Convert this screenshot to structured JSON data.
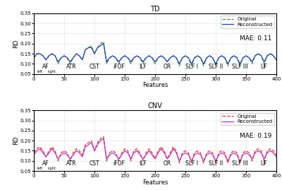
{
  "chart_data": [
    {
      "type": "line",
      "title": "TD",
      "x_label": "Features",
      "y_label": "RD",
      "annotation": "MAE: 0.11",
      "tract_labels": [
        {
          "label": "AF",
          "x": 20
        },
        {
          "label": "ATR",
          "x": 62
        },
        {
          "label": "CST",
          "x": 100
        },
        {
          "label": "iFOF",
          "x": 140
        },
        {
          "label": "ILF",
          "x": 180
        },
        {
          "label": "OR",
          "x": 220
        },
        {
          "label": "SLF I",
          "x": 260
        },
        {
          "label": "SLF II",
          "x": 300
        },
        {
          "label": "SLF III",
          "x": 340
        },
        {
          "label": "UF",
          "x": 380
        }
      ],
      "side_labels": [
        {
          "label": "left",
          "x": 10
        },
        {
          "label": "right",
          "x": 30
        }
      ],
      "x": [
        0,
        5,
        10,
        15,
        20,
        25,
        30,
        35,
        40,
        45,
        50,
        55,
        60,
        65,
        70,
        75,
        80,
        85,
        90,
        95,
        100,
        105,
        110,
        115,
        120,
        125,
        130,
        135,
        140,
        145,
        150,
        155,
        160,
        165,
        170,
        175,
        180,
        185,
        190,
        195,
        200,
        205,
        210,
        215,
        220,
        225,
        230,
        235,
        240,
        245,
        250,
        255,
        260,
        265,
        270,
        275,
        280,
        285,
        290,
        295,
        300,
        305,
        310,
        315,
        320,
        325,
        330,
        335,
        340,
        345,
        350,
        355,
        360,
        365,
        370,
        375,
        380,
        385,
        390,
        395,
        400
      ],
      "series": [
        {
          "name": "Original",
          "color": "#3a9a3a",
          "line_style": "dashed",
          "values": [
            0.13,
            0.15,
            0.15,
            0.14,
            0.12,
            0.14,
            0.15,
            0.14,
            0.1,
            0.13,
            0.14,
            0.13,
            0.1,
            0.13,
            0.15,
            0.14,
            0.12,
            0.17,
            0.18,
            0.19,
            0.15,
            0.18,
            0.2,
            0.21,
            0.1,
            0.13,
            0.14,
            0.13,
            0.1,
            0.13,
            0.14,
            0.13,
            0.1,
            0.13,
            0.14,
            0.13,
            0.1,
            0.13,
            0.14,
            0.13,
            0.1,
            0.13,
            0.14,
            0.13,
            0.11,
            0.13,
            0.14,
            0.13,
            0.09,
            0.13,
            0.14,
            0.13,
            0.09,
            0.13,
            0.14,
            0.13,
            0.09,
            0.13,
            0.14,
            0.13,
            0.09,
            0.13,
            0.14,
            0.13,
            0.09,
            0.13,
            0.14,
            0.13,
            0.09,
            0.13,
            0.14,
            0.13,
            0.1,
            0.14,
            0.15,
            0.14,
            0.1,
            0.14,
            0.15,
            0.14,
            0.12
          ]
        },
        {
          "name": "Reconstructed",
          "color": "#2040c0",
          "line_style": "solid",
          "values": [
            0.13,
            0.15,
            0.15,
            0.14,
            0.12,
            0.14,
            0.15,
            0.14,
            0.11,
            0.13,
            0.14,
            0.13,
            0.11,
            0.13,
            0.15,
            0.14,
            0.12,
            0.17,
            0.18,
            0.18,
            0.15,
            0.18,
            0.19,
            0.2,
            0.11,
            0.13,
            0.14,
            0.13,
            0.11,
            0.13,
            0.14,
            0.13,
            0.11,
            0.13,
            0.14,
            0.13,
            0.11,
            0.13,
            0.14,
            0.13,
            0.11,
            0.13,
            0.14,
            0.13,
            0.11,
            0.13,
            0.14,
            0.13,
            0.1,
            0.13,
            0.14,
            0.13,
            0.1,
            0.13,
            0.14,
            0.13,
            0.1,
            0.13,
            0.14,
            0.13,
            0.1,
            0.13,
            0.14,
            0.13,
            0.1,
            0.13,
            0.14,
            0.13,
            0.1,
            0.13,
            0.14,
            0.13,
            0.11,
            0.14,
            0.15,
            0.14,
            0.11,
            0.14,
            0.15,
            0.14,
            0.12
          ]
        }
      ],
      "xlim": [
        0,
        400
      ],
      "xticks": [
        0,
        50,
        100,
        150,
        200,
        250,
        300,
        350,
        400
      ],
      "ylim": [
        0.05,
        0.35
      ],
      "yticks": [
        0.05,
        {
          "value": 0.1,
          "label": "0.10"
        },
        0.15,
        {
          "value": 0.2,
          "label": "0.20"
        },
        0.25,
        {
          "value": 0.3,
          "label": "0.30"
        },
        0.35
      ],
      "grid": true,
      "legend": "upper right"
    },
    {
      "type": "line",
      "title": "CNV",
      "x_label": "Features",
      "y_label": "RD",
      "annotation": "MAE: 0.19",
      "tract_labels": [
        {
          "label": "AF",
          "x": 20
        },
        {
          "label": "ATR",
          "x": 62
        },
        {
          "label": "CST",
          "x": 100
        },
        {
          "label": "iFOF",
          "x": 140
        },
        {
          "label": "ILF",
          "x": 180
        },
        {
          "label": "OR",
          "x": 220
        },
        {
          "label": "SLF I",
          "x": 260
        },
        {
          "label": "SLF II",
          "x": 300
        },
        {
          "label": "SLF III",
          "x": 340
        },
        {
          "label": "UF",
          "x": 380
        }
      ],
      "side_labels": [
        {
          "label": "left",
          "x": 10
        },
        {
          "label": "right",
          "x": 30
        }
      ],
      "x": [
        0,
        5,
        10,
        15,
        20,
        25,
        30,
        35,
        40,
        45,
        50,
        55,
        60,
        65,
        70,
        75,
        80,
        85,
        90,
        95,
        100,
        105,
        110,
        115,
        120,
        125,
        130,
        135,
        140,
        145,
        150,
        155,
        160,
        165,
        170,
        175,
        180,
        185,
        190,
        195,
        200,
        205,
        210,
        215,
        220,
        225,
        230,
        235,
        240,
        245,
        250,
        255,
        260,
        265,
        270,
        275,
        280,
        285,
        290,
        295,
        300,
        305,
        310,
        315,
        320,
        325,
        330,
        335,
        340,
        345,
        350,
        355,
        360,
        365,
        370,
        375,
        380,
        385,
        390,
        395,
        400
      ],
      "series": [
        {
          "name": "Original",
          "color": "#e0303a",
          "line_style": "dashed",
          "values": [
            0.14,
            0.16,
            0.17,
            0.15,
            0.12,
            0.15,
            0.17,
            0.15,
            0.1,
            0.14,
            0.15,
            0.14,
            0.1,
            0.14,
            0.16,
            0.15,
            0.13,
            0.18,
            0.19,
            0.2,
            0.15,
            0.19,
            0.21,
            0.22,
            0.1,
            0.14,
            0.15,
            0.14,
            0.1,
            0.14,
            0.16,
            0.15,
            0.1,
            0.15,
            0.16,
            0.14,
            0.1,
            0.14,
            0.16,
            0.14,
            0.11,
            0.15,
            0.17,
            0.15,
            0.11,
            0.14,
            0.17,
            0.15,
            0.09,
            0.14,
            0.15,
            0.14,
            0.09,
            0.14,
            0.15,
            0.14,
            0.09,
            0.14,
            0.15,
            0.14,
            0.09,
            0.14,
            0.15,
            0.14,
            0.09,
            0.14,
            0.15,
            0.14,
            0.09,
            0.14,
            0.15,
            0.14,
            0.1,
            0.15,
            0.16,
            0.15,
            0.1,
            0.15,
            0.16,
            0.15,
            0.13
          ]
        },
        {
          "name": "Reconstructed",
          "color": "#c030c0",
          "line_style": "solid",
          "values": [
            0.13,
            0.15,
            0.16,
            0.14,
            0.12,
            0.14,
            0.16,
            0.14,
            0.11,
            0.13,
            0.14,
            0.13,
            0.11,
            0.13,
            0.15,
            0.14,
            0.12,
            0.17,
            0.18,
            0.19,
            0.15,
            0.18,
            0.2,
            0.21,
            0.11,
            0.13,
            0.14,
            0.13,
            0.11,
            0.13,
            0.15,
            0.14,
            0.11,
            0.14,
            0.15,
            0.13,
            0.11,
            0.13,
            0.15,
            0.13,
            0.11,
            0.14,
            0.16,
            0.14,
            0.11,
            0.13,
            0.16,
            0.14,
            0.1,
            0.13,
            0.14,
            0.13,
            0.1,
            0.13,
            0.14,
            0.13,
            0.1,
            0.13,
            0.14,
            0.13,
            0.1,
            0.13,
            0.14,
            0.13,
            0.1,
            0.13,
            0.14,
            0.13,
            0.1,
            0.13,
            0.14,
            0.13,
            0.11,
            0.14,
            0.15,
            0.14,
            0.11,
            0.14,
            0.15,
            0.14,
            0.12
          ]
        }
      ],
      "xlim": [
        0,
        400
      ],
      "xticks": [
        0,
        50,
        100,
        150,
        200,
        250,
        300,
        350,
        400
      ],
      "ylim": [
        0.05,
        0.35
      ],
      "yticks": [
        0.05,
        {
          "value": 0.1,
          "label": "0.10"
        },
        0.15,
        {
          "value": 0.2,
          "label": "0.20"
        },
        0.25,
        {
          "value": 0.3,
          "label": "0.30"
        },
        0.35
      ],
      "grid": true,
      "legend": "upper right"
    }
  ]
}
